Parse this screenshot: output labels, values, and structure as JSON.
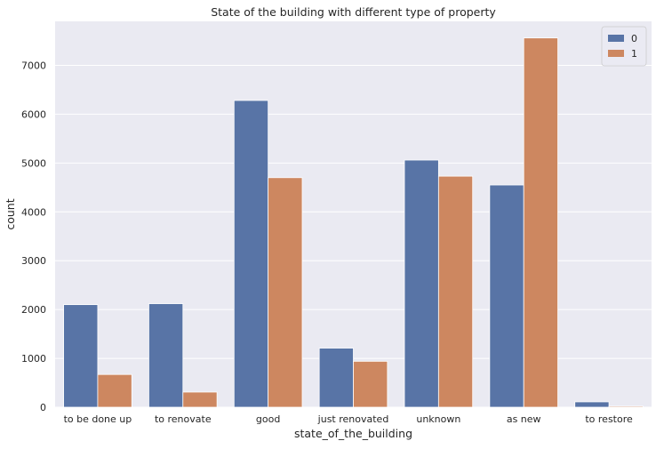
{
  "chart_data": {
    "type": "bar",
    "title": "State of the building with different type of property",
    "xlabel": "state_of_the_building",
    "ylabel": "count",
    "categories": [
      "to be done up",
      "to renovate",
      "good",
      "just renovated",
      "unknown",
      "as new",
      "to restore"
    ],
    "series": [
      {
        "name": "0",
        "values": [
          2100,
          2120,
          6280,
          1210,
          5060,
          4550,
          110
        ],
        "color": "#5874a6"
      },
      {
        "name": "1",
        "values": [
          670,
          310,
          4700,
          940,
          4730,
          7560,
          20
        ],
        "color": "#cd8760"
      }
    ],
    "ylim": [
      0,
      7900
    ],
    "yticks": [
      0,
      1000,
      2000,
      3000,
      4000,
      5000,
      6000,
      7000
    ],
    "grid": true,
    "legend_position": "top-right",
    "background": "#eaeaf2"
  }
}
